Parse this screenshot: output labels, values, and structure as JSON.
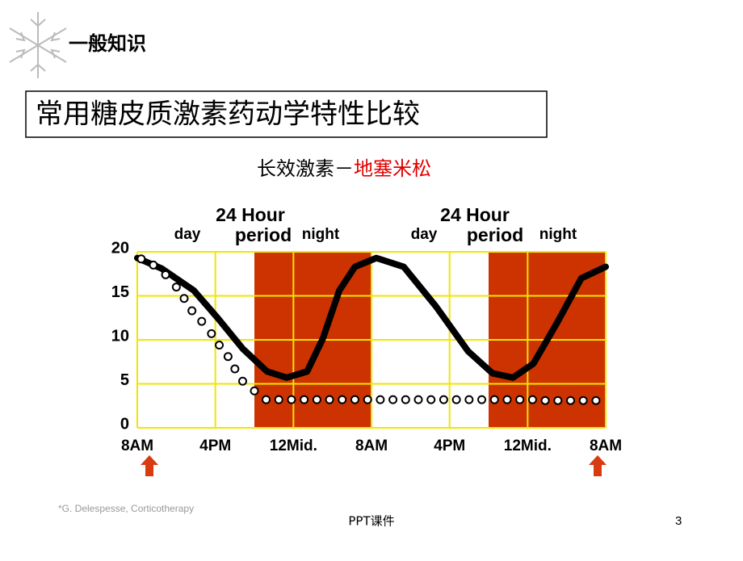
{
  "header": {
    "section": "一般知识",
    "title": "常用糖皮质激素药动学特性比较",
    "subtitle": "长效激素－",
    "subtitle_drug": "地塞米松"
  },
  "chart_data": {
    "type": "line",
    "annotations": [
      "day",
      "24 Hour",
      "period",
      "night",
      "day",
      "24 Hour",
      "period",
      "night"
    ],
    "xlim": [
      0,
      48
    ],
    "ylim": [
      0,
      20
    ],
    "xticks": [
      {
        "value": 0,
        "label": "8AM"
      },
      {
        "value": 8,
        "label": "4PM"
      },
      {
        "value": 16,
        "label": "12Mid."
      },
      {
        "value": 24,
        "label": "8AM"
      },
      {
        "value": 32,
        "label": "4PM"
      },
      {
        "value": 40,
        "label": "12Mid."
      },
      {
        "value": 48,
        "label": "8AM"
      }
    ],
    "yticks": [
      0,
      5,
      10,
      15,
      20
    ],
    "grid": true,
    "grid_color": "#f2e600",
    "shaded_ranges": [
      [
        12,
        24
      ],
      [
        36,
        48
      ]
    ],
    "shade_color": "#cc3300",
    "series": [
      {
        "color": "#000000",
        "style": "solid",
        "x": [
          0,
          2.5,
          5.8,
          8.3,
          10.8,
          13.3,
          15.3,
          17.4,
          19,
          20.7,
          22.3,
          24.5,
          27.3,
          30.6,
          33.9,
          36.4,
          38.5,
          40.6,
          43,
          45.5,
          48
        ],
        "values": [
          19.3,
          18.1,
          15.6,
          12.4,
          9.0,
          6.4,
          5.7,
          6.4,
          10.1,
          15.6,
          18.3,
          19.3,
          18.3,
          13.8,
          8.7,
          6.2,
          5.7,
          7.3,
          11.9,
          17,
          18.3
        ]
      },
      {
        "color": "#000000",
        "style": "circles",
        "x": [
          0.4,
          1.65,
          2.9,
          4,
          4.8,
          5.6,
          6.6,
          7.6,
          8.4,
          9.3,
          10,
          10.8,
          12,
          13.2,
          14.5,
          15.8,
          17.1,
          18.4,
          19.7,
          21,
          22.3,
          23.6,
          24.9,
          26.2,
          27.5,
          28.8,
          30.1,
          31.4,
          32.7,
          34,
          35.3,
          36.6,
          37.9,
          39.2,
          40.5,
          41.8,
          43.1,
          44.4,
          45.7,
          47
        ],
        "values": [
          19.2,
          18.5,
          17.4,
          16,
          14.7,
          13.3,
          12.1,
          10.7,
          9.4,
          8.1,
          6.7,
          5.3,
          4.2,
          3.2,
          3.2,
          3.2,
          3.2,
          3.2,
          3.2,
          3.2,
          3.2,
          3.2,
          3.2,
          3.2,
          3.2,
          3.2,
          3.2,
          3.2,
          3.2,
          3.2,
          3.2,
          3.2,
          3.2,
          3.2,
          3.2,
          3.1,
          3.1,
          3.1,
          3.1,
          3.1
        ]
      }
    ]
  },
  "footer": {
    "citation": "*G. Delespesse, Corticotherapy",
    "center": "PPT课件",
    "page": "3"
  }
}
